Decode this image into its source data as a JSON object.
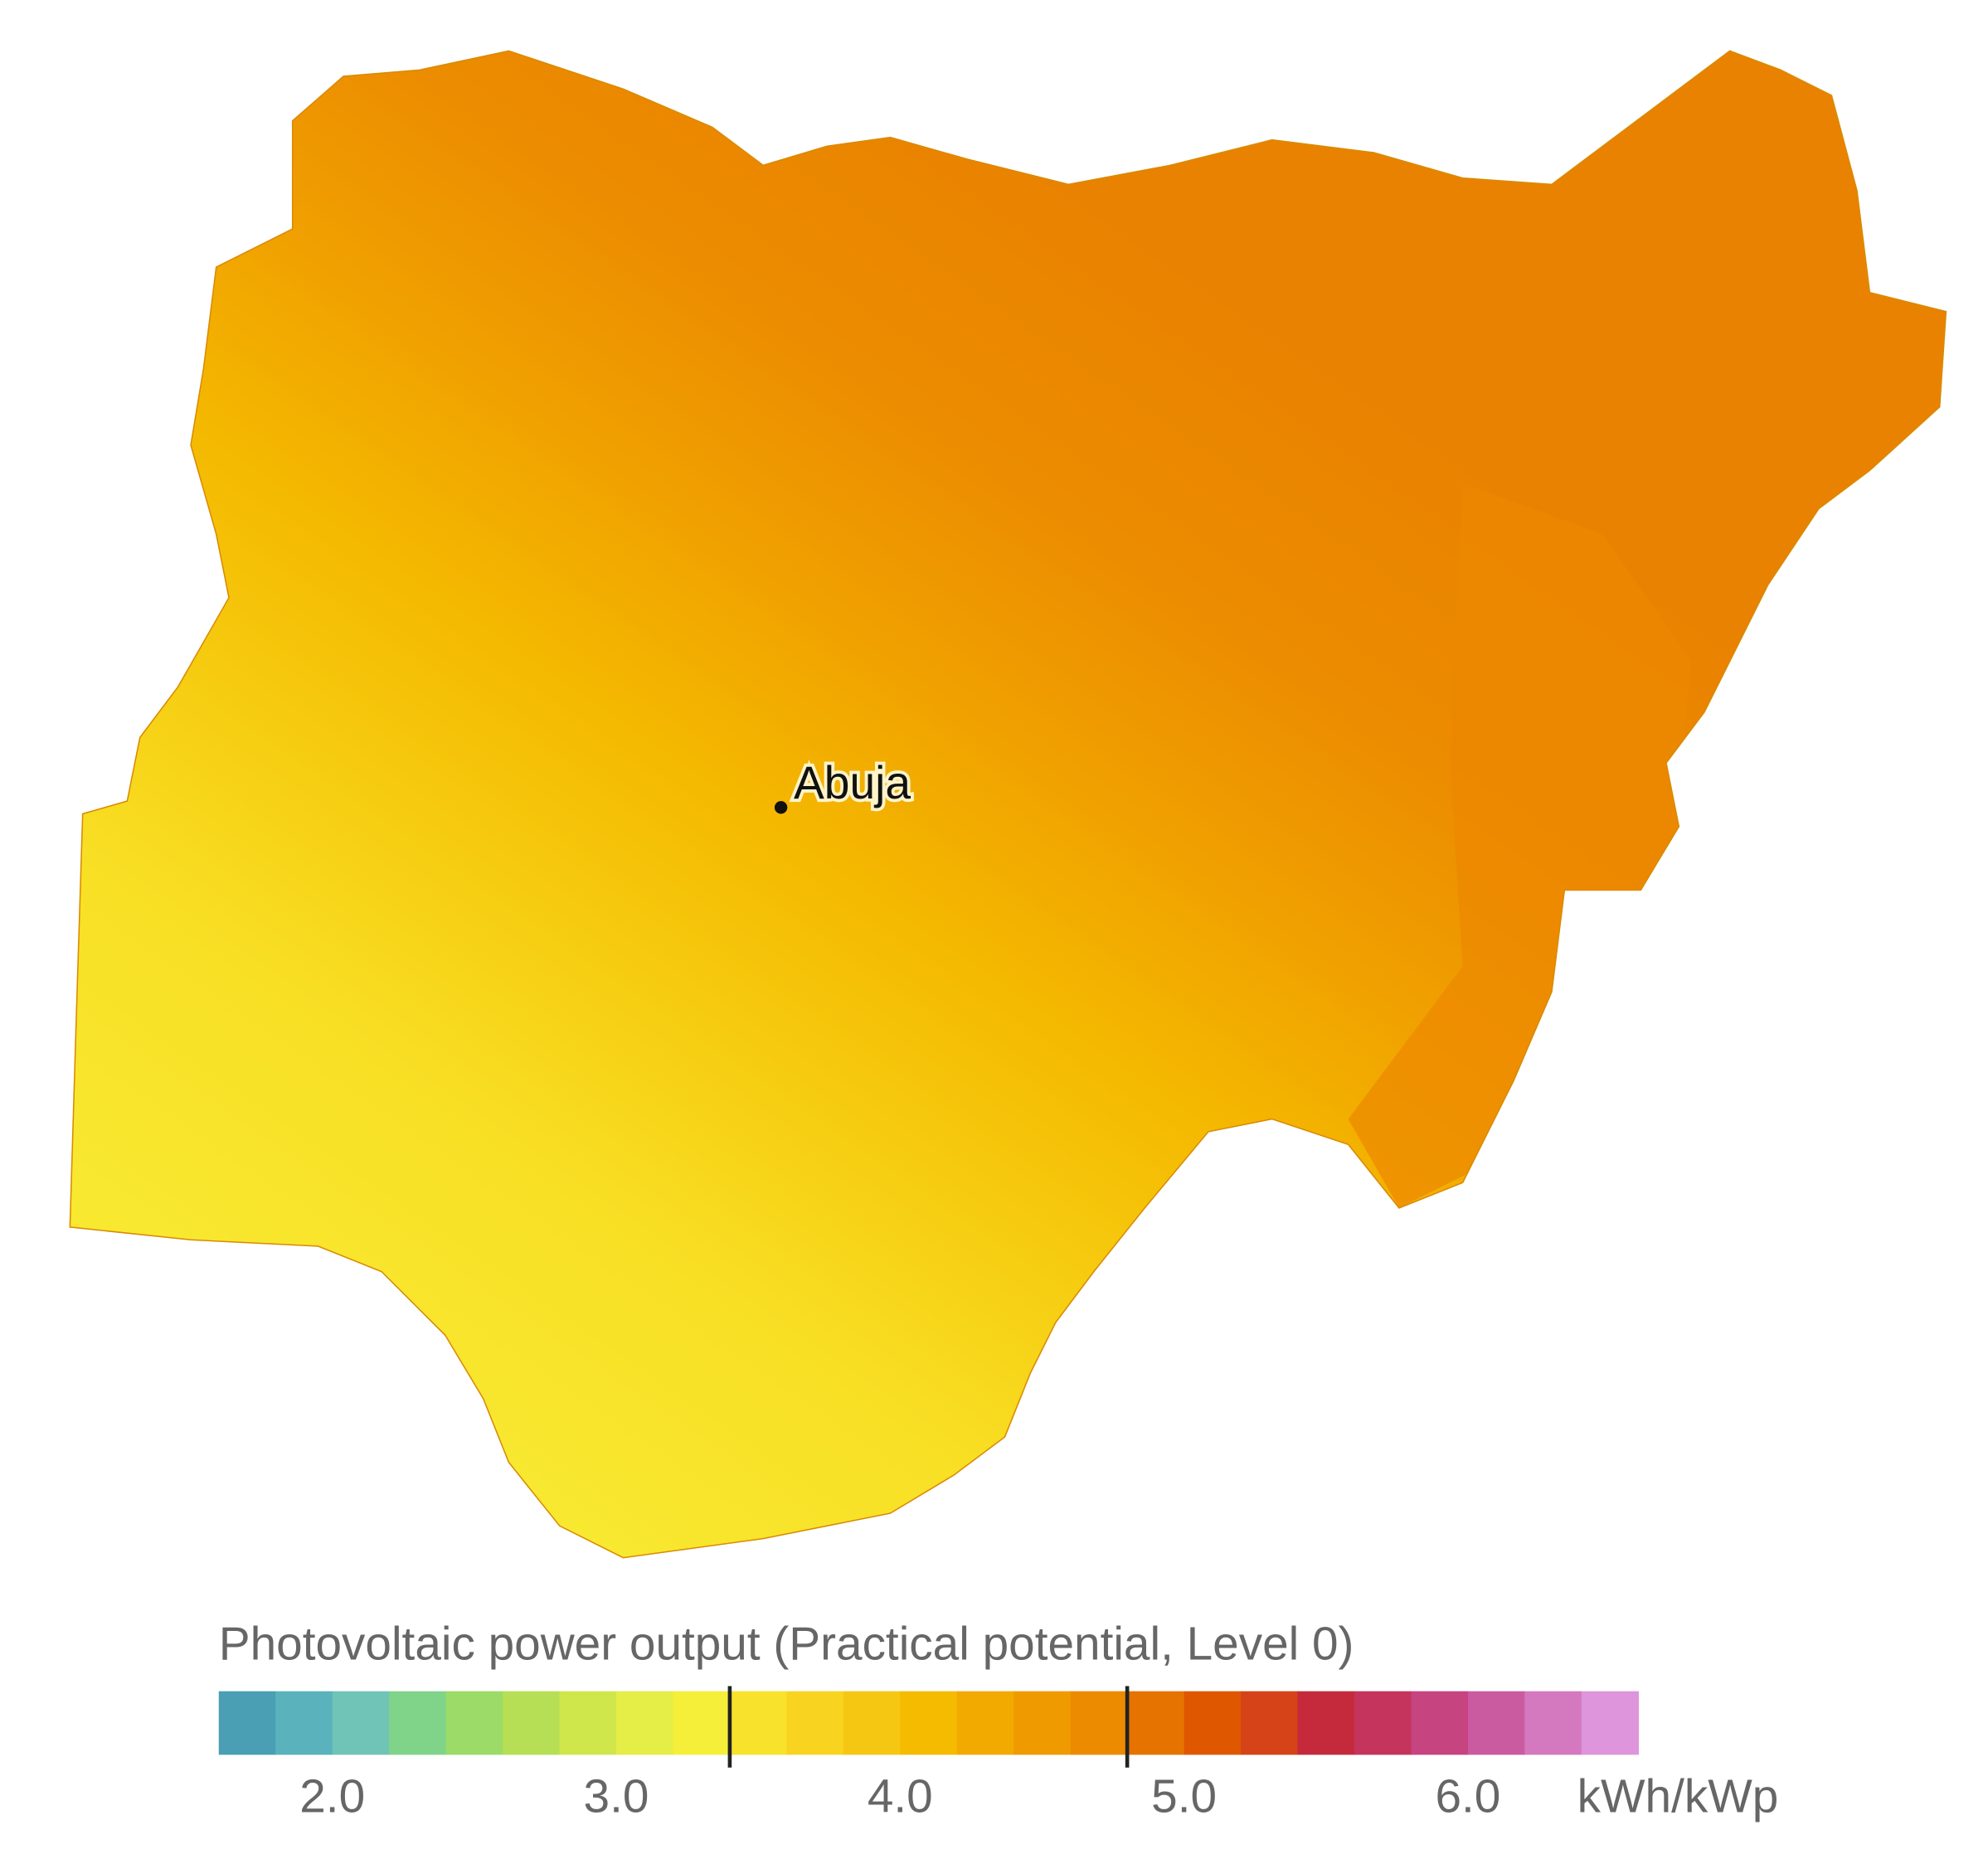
{
  "map": {
    "city": "Abuja"
  },
  "legend": {
    "title": "Photovoltaic power output (Practical potential, Level 0)",
    "unit": "kWh/kWp",
    "range": [
      1.6,
      6.6
    ],
    "colors": [
      "#4a9fb4",
      "#5ab2bc",
      "#70c3b7",
      "#80d48a",
      "#9cdb67",
      "#b6df55",
      "#d0e74c",
      "#e5ed47",
      "#f5ef3a",
      "#f9e22c",
      "#f8d420",
      "#f6c712",
      "#f5bb00",
      "#f2aa00",
      "#ef9b00",
      "#ec8b00",
      "#e67300",
      "#df5800",
      "#d64318",
      "#c42a3c",
      "#c4345c",
      "#c6447f",
      "#cb5ba1",
      "#d478c0",
      "#df95dc"
    ],
    "ticks": [
      {
        "value": 2,
        "label": "2.0"
      },
      {
        "value": 3,
        "label": "3.0"
      },
      {
        "value": 4,
        "label": "4.0"
      },
      {
        "value": 5,
        "label": "5.0"
      },
      {
        "value": 6,
        "label": "6.0"
      }
    ],
    "markers": [
      3.4,
      4.8
    ]
  }
}
